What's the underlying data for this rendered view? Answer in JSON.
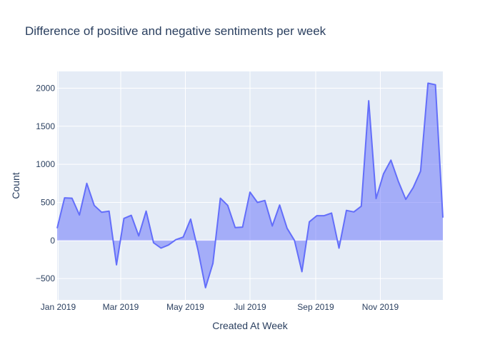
{
  "chart_data": {
    "type": "area",
    "title": "Difference of positive and negative sentiments per week",
    "xlabel": "Created At Week",
    "ylabel": "Count",
    "colors": {
      "line": "#636efa",
      "fill": "rgba(99,110,250,0.5)",
      "plot_bg": "#e5ecf6",
      "grid": "#ffffff",
      "text": "#2a3f5f"
    },
    "grid": true,
    "legend": "none",
    "xlim": [
      "2018-12-31",
      "2019-12-30"
    ],
    "ylim": [
      -780,
      2220
    ],
    "x_ticks": [
      {
        "date": "2019-01-01",
        "label": "Jan 2019"
      },
      {
        "date": "2019-03-01",
        "label": "Mar 2019"
      },
      {
        "date": "2019-05-01",
        "label": "May 2019"
      },
      {
        "date": "2019-07-01",
        "label": "Jul 2019"
      },
      {
        "date": "2019-09-01",
        "label": "Sep 2019"
      },
      {
        "date": "2019-11-01",
        "label": "Nov 2019"
      }
    ],
    "y_ticks": [
      -500,
      0,
      500,
      1000,
      1500,
      2000
    ],
    "x": [
      "2018-12-31",
      "2019-01-07",
      "2019-01-14",
      "2019-01-21",
      "2019-01-28",
      "2019-02-04",
      "2019-02-11",
      "2019-02-18",
      "2019-02-25",
      "2019-03-04",
      "2019-03-11",
      "2019-03-18",
      "2019-03-25",
      "2019-04-01",
      "2019-04-08",
      "2019-04-15",
      "2019-04-22",
      "2019-04-29",
      "2019-05-06",
      "2019-05-13",
      "2019-05-20",
      "2019-05-27",
      "2019-06-03",
      "2019-06-10",
      "2019-06-17",
      "2019-06-24",
      "2019-07-01",
      "2019-07-08",
      "2019-07-15",
      "2019-07-22",
      "2019-07-29",
      "2019-08-05",
      "2019-08-12",
      "2019-08-19",
      "2019-08-26",
      "2019-09-02",
      "2019-09-09",
      "2019-09-16",
      "2019-09-23",
      "2019-09-30",
      "2019-10-07",
      "2019-10-14",
      "2019-10-21",
      "2019-10-28",
      "2019-11-04",
      "2019-11-11",
      "2019-11-18",
      "2019-11-25",
      "2019-12-02",
      "2019-12-09",
      "2019-12-16",
      "2019-12-23",
      "2019-12-30"
    ],
    "series": [
      {
        "values": [
          160,
          560,
          555,
          335,
          750,
          460,
          370,
          385,
          -320,
          290,
          330,
          60,
          385,
          -30,
          -100,
          -60,
          10,
          45,
          280,
          -130,
          -620,
          -300,
          555,
          460,
          170,
          175,
          635,
          500,
          525,
          190,
          465,
          160,
          0,
          -410,
          245,
          325,
          325,
          360,
          -100,
          395,
          375,
          450,
          1835,
          550,
          875,
          1055,
          775,
          540,
          695,
          910,
          2065,
          2045,
          300
        ]
      }
    ]
  }
}
